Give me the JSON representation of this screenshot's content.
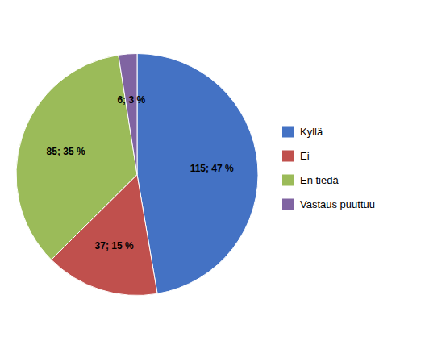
{
  "chart_data": {
    "type": "pie",
    "categories": [
      "Kyllä",
      "Ei",
      "En tiedä",
      "Vastaus puuttuu"
    ],
    "values": [
      115,
      37,
      85,
      6
    ],
    "percentages": [
      47,
      15,
      35,
      3
    ],
    "value_labels": [
      "115; 47 %",
      "37; 15 %",
      "85; 35 %",
      "6; 3 %"
    ],
    "colors": [
      "#4472C4",
      "#C0504D",
      "#9BBB59",
      "#8064A2"
    ],
    "data_labels": true,
    "legend": "right"
  }
}
